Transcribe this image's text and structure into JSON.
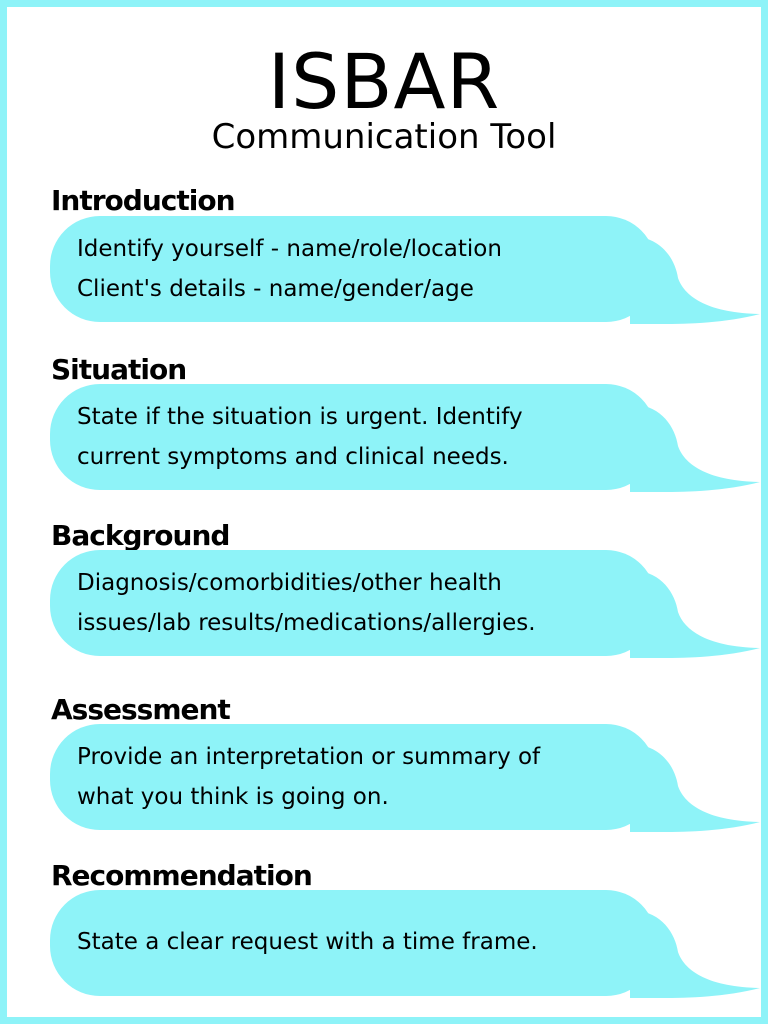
{
  "title": "ISBAR",
  "subtitle": "Communication Tool",
  "colors": {
    "accent": "#8ef3f8",
    "text": "#000000",
    "background": "#ffffff"
  },
  "sections": [
    {
      "heading": "Introduction",
      "text": "Identify yourself - name/role/location\nClient's details - name/gender/age"
    },
    {
      "heading": "Situation",
      "text": "State if the situation is urgent. Identify\ncurrent symptoms and clinical needs."
    },
    {
      "heading": "Background",
      "text": "Diagnosis/comorbidities/other health\nissues/lab results/medications/allergies."
    },
    {
      "heading": "Assessment",
      "text": "Provide an interpretation or summary of\nwhat you think is going on."
    },
    {
      "heading": "Recommendation",
      "text": "State a clear request with a time frame."
    }
  ]
}
